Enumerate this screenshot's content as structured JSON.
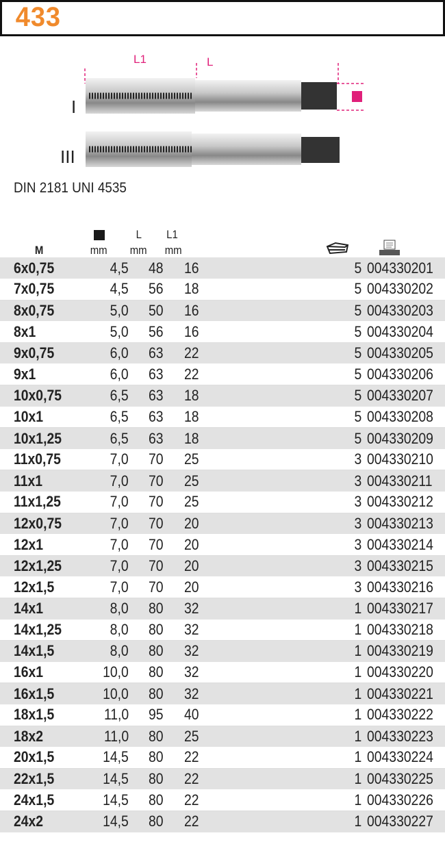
{
  "header": {
    "title": "433"
  },
  "illustration": {
    "labels": {
      "l1": "L1",
      "l": "L",
      "type1": "I",
      "type3": "III"
    },
    "accent": "#e0207a"
  },
  "standard": "DIN 2181 UNI 4535",
  "columns": {
    "m": "M",
    "square_unit": "mm",
    "l": "L",
    "l_unit": "mm",
    "l1": "L1",
    "l1_unit": "mm",
    "pack_icon": "box-icon",
    "code_icon": "barcode-terminal-icon"
  },
  "rows": [
    [
      "6x0,75",
      "4,5",
      "48",
      "16",
      "5",
      "004330201"
    ],
    [
      "7x0,75",
      "4,5",
      "56",
      "18",
      "5",
      "004330202"
    ],
    [
      "8x0,75",
      "5,0",
      "50",
      "16",
      "5",
      "004330203"
    ],
    [
      "8x1",
      "5,0",
      "56",
      "16",
      "5",
      "004330204"
    ],
    [
      "9x0,75",
      "6,0",
      "63",
      "22",
      "5",
      "004330205"
    ],
    [
      "9x1",
      "6,0",
      "63",
      "22",
      "5",
      "004330206"
    ],
    [
      "10x0,75",
      "6,5",
      "63",
      "18",
      "5",
      "004330207"
    ],
    [
      "10x1",
      "6,5",
      "63",
      "18",
      "5",
      "004330208"
    ],
    [
      "10x1,25",
      "6,5",
      "63",
      "18",
      "5",
      "004330209"
    ],
    [
      "11x0,75",
      "7,0",
      "70",
      "25",
      "3",
      "004330210"
    ],
    [
      "11x1",
      "7,0",
      "70",
      "25",
      "3",
      "004330211"
    ],
    [
      "11x1,25",
      "7,0",
      "70",
      "25",
      "3",
      "004330212"
    ],
    [
      "12x0,75",
      "7,0",
      "70",
      "20",
      "3",
      "004330213"
    ],
    [
      "12x1",
      "7,0",
      "70",
      "20",
      "3",
      "004330214"
    ],
    [
      "12x1,25",
      "7,0",
      "70",
      "20",
      "3",
      "004330215"
    ],
    [
      "12x1,5",
      "7,0",
      "70",
      "20",
      "3",
      "004330216"
    ],
    [
      "14x1",
      "8,0",
      "80",
      "32",
      "1",
      "004330217"
    ],
    [
      "14x1,25",
      "8,0",
      "80",
      "32",
      "1",
      "004330218"
    ],
    [
      "14x1,5",
      "8,0",
      "80",
      "32",
      "1",
      "004330219"
    ],
    [
      "16x1",
      "10,0",
      "80",
      "32",
      "1",
      "004330220"
    ],
    [
      "16x1,5",
      "10,0",
      "80",
      "32",
      "1",
      "004330221"
    ],
    [
      "18x1,5",
      "11,0",
      "95",
      "40",
      "1",
      "004330222"
    ],
    [
      "18x2",
      "11,0",
      "80",
      "25",
      "1",
      "004330223"
    ],
    [
      "20x1,5",
      "14,5",
      "80",
      "22",
      "1",
      "004330224"
    ],
    [
      "22x1,5",
      "14,5",
      "80",
      "22",
      "1",
      "004330225"
    ],
    [
      "24x1,5",
      "14,5",
      "80",
      "22",
      "1",
      "004330226"
    ],
    [
      "24x2",
      "14,5",
      "80",
      "22",
      "1",
      "004330227"
    ]
  ]
}
